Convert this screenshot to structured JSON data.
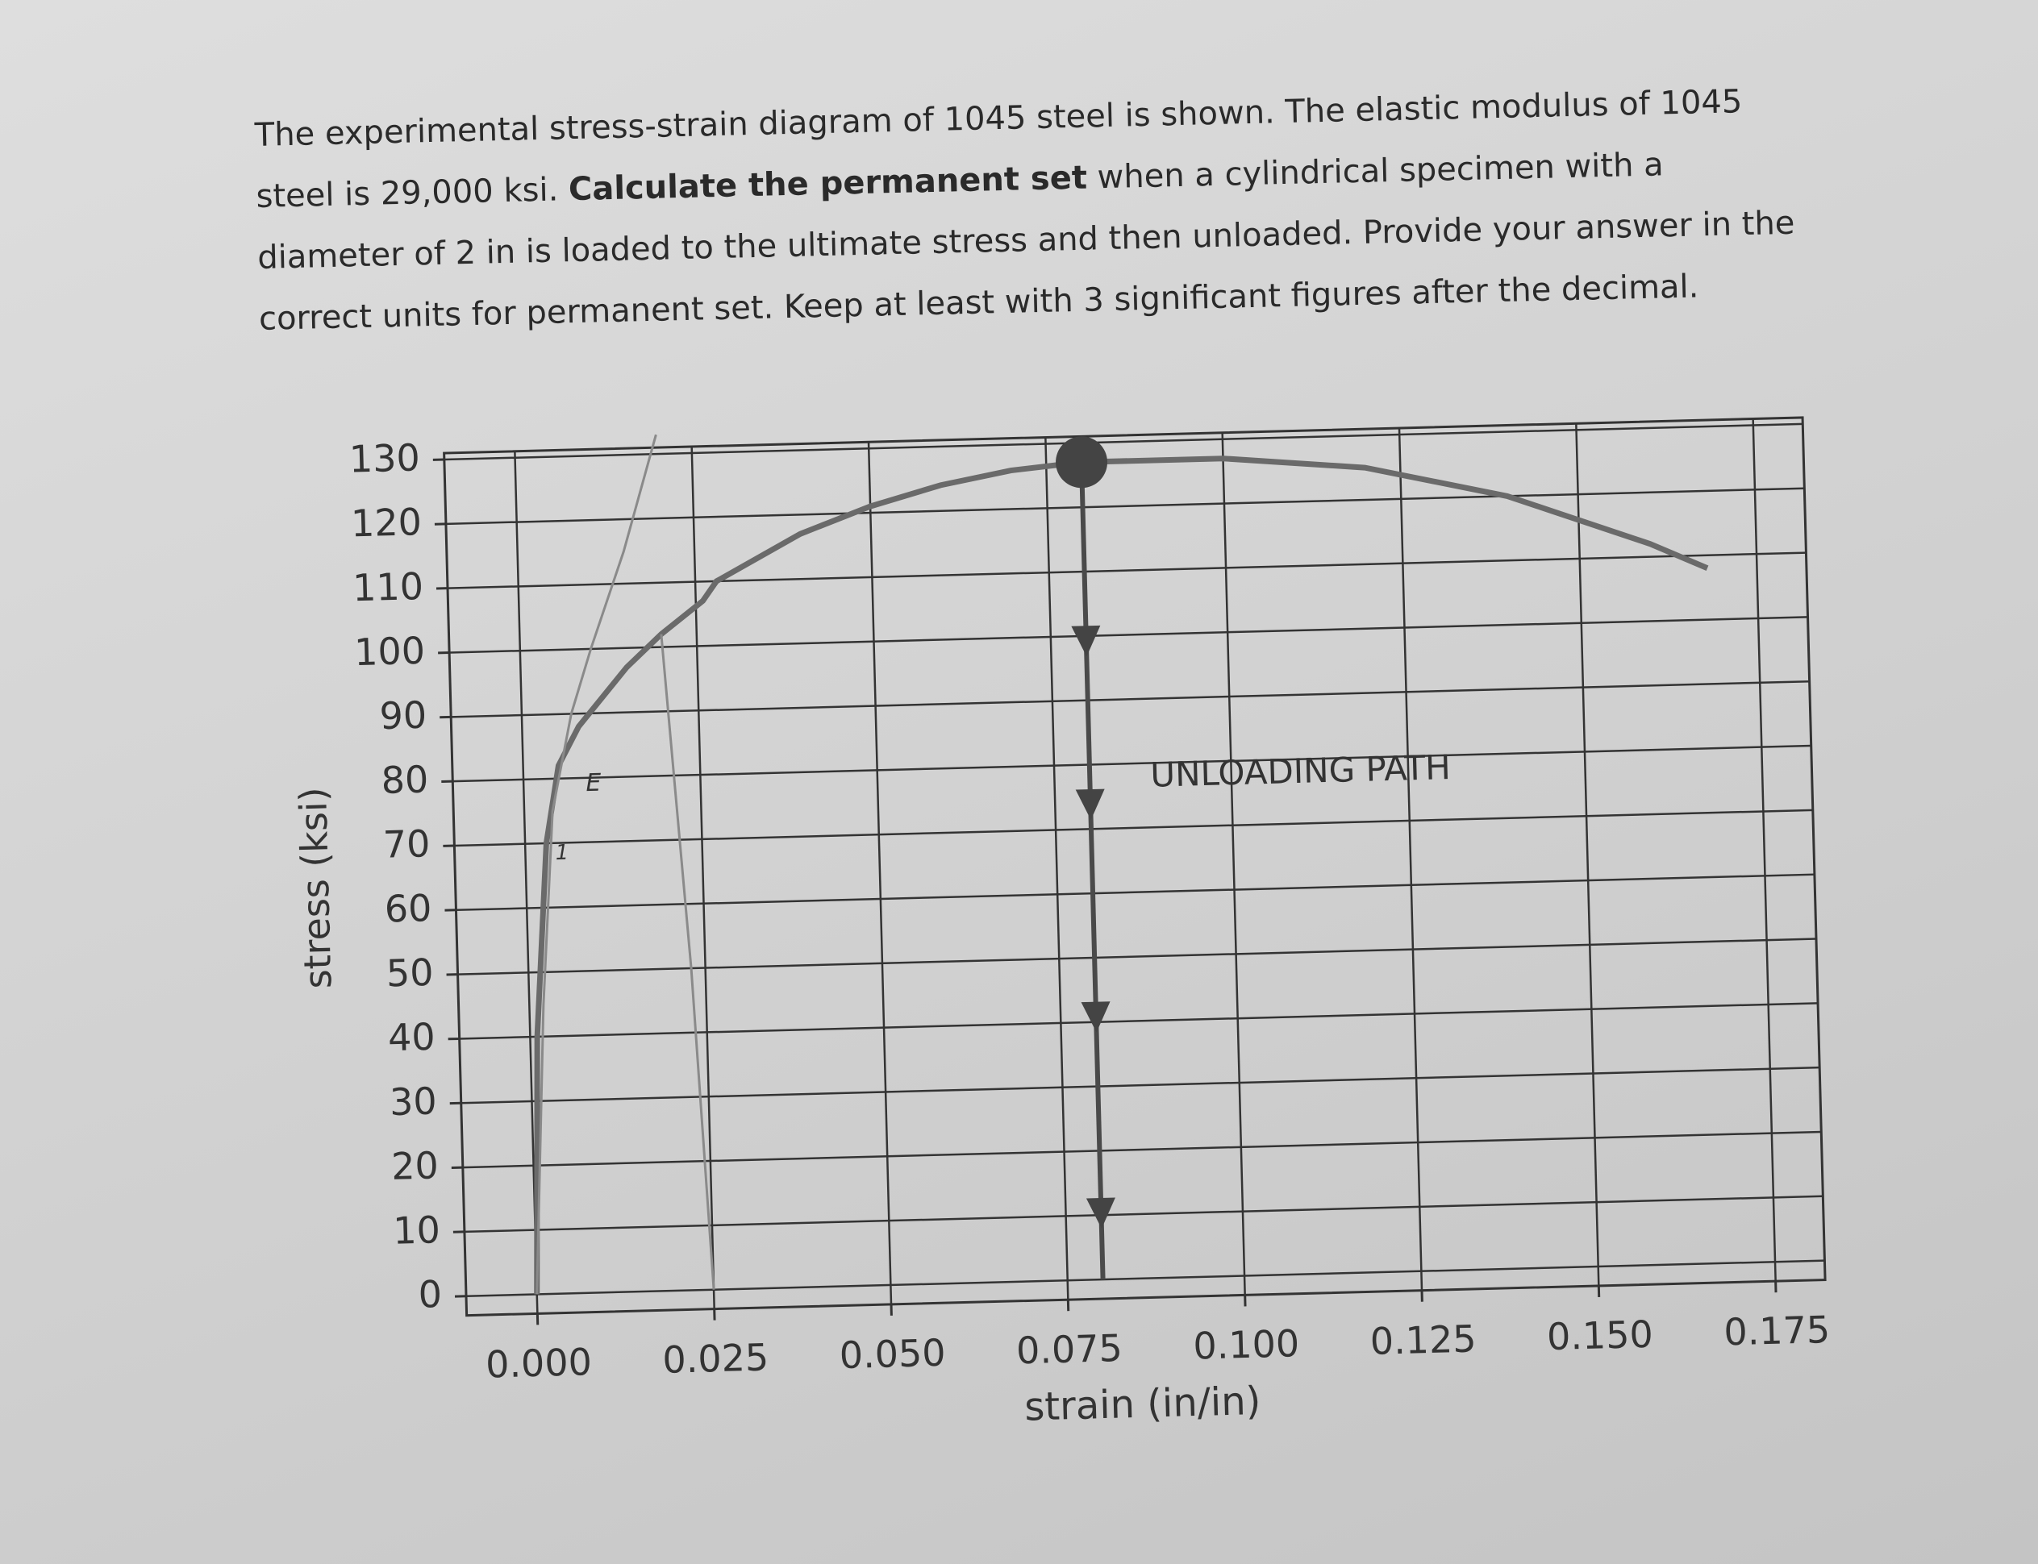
{
  "question": {
    "parts": [
      "The experimental stress-strain diagram of 1045 steel is shown. The elastic modulus of 1045 steel is 29,000 ksi. ",
      "Calculate the permanent set",
      " when a cylindrical specimen with a diameter of 2 in is loaded to the ultimate stress and then unloaded. Provide your answer in the correct units for permanent set. Keep at least with 3 significant figures after the decimal."
    ]
  },
  "chart_data": {
    "type": "line",
    "xlabel": "strain (in/in)",
    "ylabel": "stress (ksi)",
    "xlim": [
      -0.01,
      0.182
    ],
    "ylim": [
      -3,
      131
    ],
    "xticks": [
      {
        "value": 0,
        "label": "0.000"
      },
      0.025,
      {
        "value": 0.05,
        "label": "0.050"
      },
      0.075,
      {
        "value": 0.1,
        "label": "0.100"
      },
      0.125,
      {
        "value": 0.15,
        "label": "0.150"
      },
      0.175
    ],
    "yticks": [
      0,
      10,
      20,
      30,
      40,
      50,
      60,
      70,
      80,
      90,
      100,
      110,
      120,
      130
    ],
    "grid": true,
    "series": [
      {
        "color": "#6a6a6a",
        "x": [
          0,
          0.001,
          0.003,
          0.005,
          0.008,
          0.015,
          0.02,
          0.026,
          0.028,
          0.04,
          0.05,
          0.06,
          0.07,
          0.08,
          0.1,
          0.12,
          0.14,
          0.16,
          0.168
        ],
        "values": [
          0,
          40,
          70,
          82,
          88,
          97,
          102,
          107,
          110,
          117,
          121,
          124,
          126,
          127,
          127,
          125,
          120,
          112,
          108
        ]
      },
      {
        "color": "#8a8a8a",
        "x": [
          0,
          0.002,
          0.004,
          0.007,
          0.01,
          0.015,
          0.02
        ],
        "values": [
          0,
          45,
          75,
          90,
          100,
          115,
          133
        ]
      },
      {
        "color": "#8a8a8a",
        "x": [
          0.02,
          0.023,
          0.025
        ],
        "values": [
          102,
          50,
          0
        ]
      },
      {
        "color": "#4a4a4a",
        "x": [
          0.08,
          0.08
        ],
        "values": [
          127,
          0
        ]
      }
    ],
    "annotations": [
      "UNLOADING PATH",
      "E",
      "1"
    ]
  }
}
